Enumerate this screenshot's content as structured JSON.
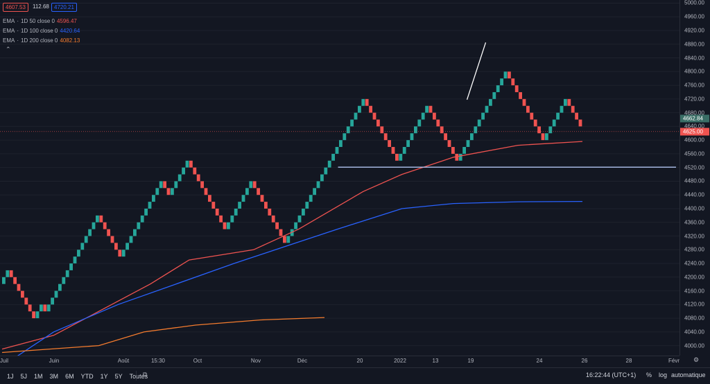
{
  "header": {
    "ohlc_open": "4607.53",
    "ohlc_mid": "112.68",
    "ohlc_close": "4720.21",
    "open_color": "#ef5350",
    "close_color": "#2962ff"
  },
  "legend": [
    {
      "name": "EMA",
      "params": "1D 50 close 0",
      "value": "4596.47",
      "color": "#ef5350"
    },
    {
      "name": "EMA",
      "params": "1D 100 close 0",
      "value": "4420.64",
      "color": "#2962ff"
    },
    {
      "name": "EMA",
      "params": "1D 200 close 0",
      "value": "4082.13",
      "color": "#f57c2e"
    }
  ],
  "toolbar": {
    "timeframes": [
      "1J",
      "5J",
      "1M",
      "3M",
      "6M",
      "YTD",
      "1Y",
      "5Y",
      "Toutes"
    ],
    "time": "16:22:44 (UTC+1)",
    "percent": "%",
    "log": "log",
    "auto": "automatique"
  },
  "chart_data": {
    "type": "renko",
    "box_size": 20,
    "up_color": "#26a69a",
    "down_color": "#ef5350",
    "y_ticks": [
      4000,
      4040,
      4080,
      4120,
      4160,
      4200,
      4240,
      4280,
      4320,
      4360,
      4400,
      4440,
      4480,
      4520,
      4560,
      4600,
      4640,
      4680,
      4720,
      4760,
      4800,
      4840,
      4880,
      4920,
      4960,
      5000
    ],
    "ylim": [
      3975,
      5005
    ],
    "x_ticks": [
      "Juil",
      "Juin",
      "Août",
      "15:30",
      "Oct",
      "Nov",
      "Déc",
      "20",
      "2022",
      "13",
      "19",
      "24",
      "26",
      "28",
      "Févr"
    ],
    "last_price": "4662.84",
    "current_price": "4625.00",
    "bricks": [
      4200,
      4220,
      4200,
      4180,
      4160,
      4140,
      4120,
      4100,
      4080,
      4100,
      4120,
      4100,
      4120,
      4140,
      4160,
      4180,
      4200,
      4220,
      4240,
      4260,
      4280,
      4300,
      4320,
      4340,
      4360,
      4380,
      4360,
      4340,
      4320,
      4300,
      4280,
      4260,
      4280,
      4300,
      4320,
      4340,
      4360,
      4380,
      4400,
      4420,
      4440,
      4460,
      4480,
      4460,
      4440,
      4460,
      4480,
      4500,
      4520,
      4540,
      4520,
      4500,
      4480,
      4460,
      4440,
      4420,
      4400,
      4380,
      4360,
      4340,
      4360,
      4380,
      4400,
      4420,
      4440,
      4460,
      4480,
      4460,
      4440,
      4420,
      4400,
      4380,
      4360,
      4340,
      4320,
      4300,
      4320,
      4340,
      4360,
      4380,
      4400,
      4420,
      4440,
      4460,
      4480,
      4500,
      4520,
      4540,
      4560,
      4580,
      4600,
      4620,
      4640,
      4660,
      4680,
      4700,
      4720,
      4700,
      4680,
      4660,
      4640,
      4620,
      4600,
      4580,
      4560,
      4540,
      4560,
      4580,
      4600,
      4620,
      4640,
      4660,
      4680,
      4700,
      4680,
      4660,
      4640,
      4620,
      4600,
      4580,
      4560,
      4540,
      4560,
      4580,
      4600,
      4620,
      4640,
      4660,
      4680,
      4700,
      4720,
      4740,
      4760,
      4780,
      4800,
      4780,
      4760,
      4740,
      4720,
      4700,
      4680,
      4660,
      4640,
      4620,
      4600,
      4620,
      4640,
      4660,
      4680,
      4700,
      4720,
      4700,
      4680,
      4660,
      4640
    ],
    "ema50": [
      [
        4000,
        3990
      ],
      [
        4080,
        4030
      ],
      [
        4150,
        4100
      ],
      [
        4230,
        4180
      ],
      [
        4290,
        4250
      ],
      [
        4390,
        4280
      ],
      [
        4460,
        4340
      ],
      [
        4560,
        4450
      ],
      [
        4620,
        4500
      ],
      [
        4700,
        4550
      ],
      [
        4800,
        4585
      ],
      [
        4900,
        4596
      ]
    ],
    "ema100": [
      [
        4000,
        3940
      ],
      [
        4080,
        4040
      ],
      [
        4180,
        4120
      ],
      [
        4270,
        4180
      ],
      [
        4360,
        4240
      ],
      [
        4440,
        4290
      ],
      [
        4520,
        4340
      ],
      [
        4620,
        4400
      ],
      [
        4700,
        4415
      ],
      [
        4800,
        4420
      ],
      [
        4900,
        4421
      ]
    ],
    "ema200": [
      [
        4000,
        3980
      ],
      [
        4150,
        4000
      ],
      [
        4220,
        4040
      ],
      [
        4300,
        4060
      ],
      [
        4400,
        4075
      ],
      [
        4500,
        4082
      ]
    ],
    "trendlines": [
      {
        "from": [
          4721,
          4718
        ],
        "to": [
          4750,
          4885
        ],
        "color": "#ffffff"
      },
      {
        "from": [
          4521,
          4521
        ],
        "to": [
          4890,
          4521
        ],
        "color": "#b2c5f0"
      }
    ]
  }
}
